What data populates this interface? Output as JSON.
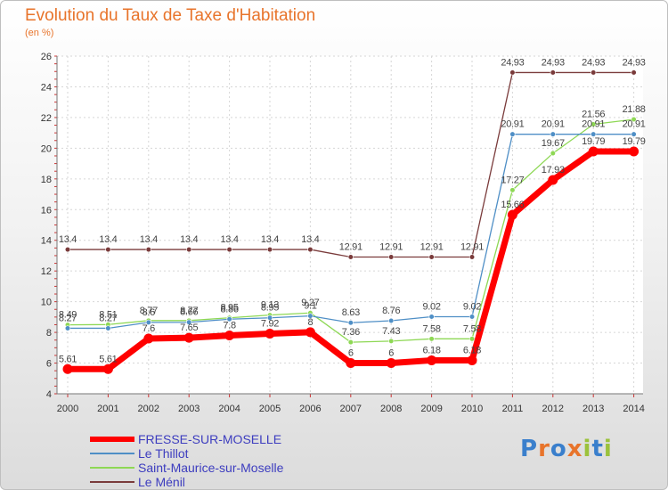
{
  "header": {
    "title": "Evolution du Taux de Taxe d'Habitation",
    "unit": "(en %)"
  },
  "logo": {
    "text": "Proxiti"
  },
  "chart_data": {
    "type": "line",
    "title": "Evolution du Taux de Taxe d'Habitation",
    "ylabel": "(en %)",
    "xlabel": "",
    "ylim": [
      4,
      26
    ],
    "yticks": [
      4,
      6,
      8,
      10,
      12,
      14,
      16,
      18,
      20,
      22,
      24,
      26
    ],
    "grid": true,
    "legend_position": "bottom-left",
    "x": [
      "2000",
      "2001",
      "2002",
      "2003",
      "2004",
      "2005",
      "2006",
      "2007",
      "2008",
      "2009",
      "2010",
      "2011",
      "2012",
      "2013",
      "2014"
    ],
    "series": [
      {
        "name": "FRESSE-SUR-MOSELLE",
        "color": "#ff0000",
        "values": [
          5.61,
          5.61,
          7.6,
          7.65,
          7.8,
          7.92,
          8.01,
          6,
          6,
          6.18,
          6.18,
          15.66,
          17.93,
          19.79,
          19.79
        ],
        "labels": [
          "5.61",
          "5.61",
          "7.6",
          "7.65",
          "7.8",
          "7.92",
          "8",
          "6",
          "6",
          "6.18",
          "6.18",
          "15.66",
          "17.93",
          "19.79",
          "19.79"
        ]
      },
      {
        "name": "Le Thillot",
        "color": "#4f8fc6",
        "values": [
          8.27,
          8.27,
          8.65,
          8.66,
          8.86,
          8.95,
          9.07,
          8.63,
          8.76,
          9.02,
          9.02,
          20.91,
          20.91,
          20.91,
          20.91
        ],
        "labels": [
          "8.27",
          "8.27",
          "8.6",
          "8.66",
          "8.86",
          "8.95",
          "9.1",
          "8.63",
          "8.76",
          "9.02",
          "9.02",
          "20.91",
          "20.91",
          "20.91",
          "20.91"
        ]
      },
      {
        "name": "Saint-Maurice-sur-Moselle",
        "color": "#8ed855",
        "values": [
          8.49,
          8.51,
          8.77,
          8.77,
          8.95,
          9.13,
          9.27,
          7.36,
          7.43,
          7.58,
          7.58,
          17.27,
          19.67,
          21.56,
          21.88
        ],
        "labels": [
          "8.49",
          "8.51",
          "8.77",
          "8.77",
          "8.95",
          "9.13",
          "9.27",
          "7.36",
          "7.43",
          "7.58",
          "7.58",
          "17.27",
          "19.67",
          "21.56",
          "21.88"
        ]
      },
      {
        "name": "Le Ménil",
        "color": "#7a3b3b",
        "values": [
          13.4,
          13.4,
          13.4,
          13.4,
          13.4,
          13.4,
          13.4,
          12.91,
          12.91,
          12.91,
          12.91,
          24.93,
          24.93,
          24.93,
          24.93
        ],
        "labels": [
          "13.4",
          "13.4",
          "13.4",
          "13.4",
          "13.4",
          "13.4",
          "13.4",
          "12.91",
          "12.91",
          "12.91",
          "12.91",
          "24.93",
          "24.93",
          "24.93",
          "24.93"
        ]
      }
    ]
  }
}
